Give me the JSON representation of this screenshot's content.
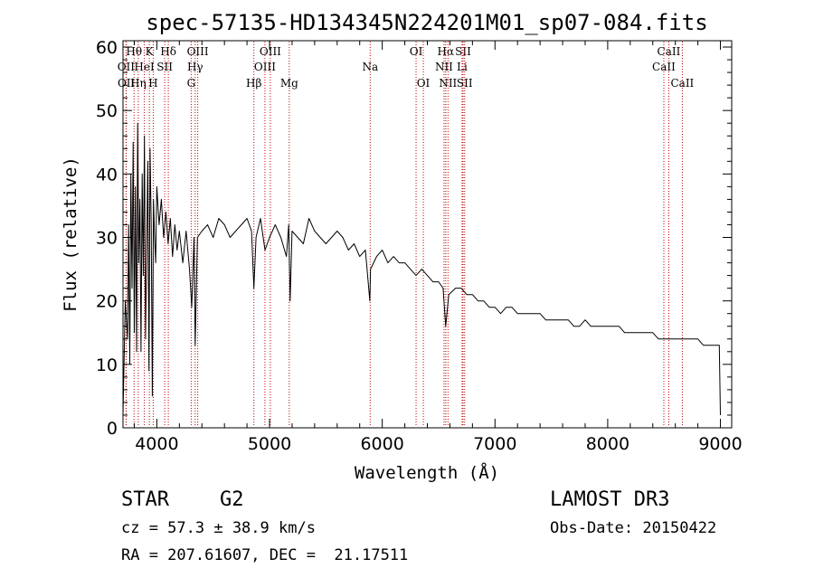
{
  "chart_data": {
    "type": "line",
    "title": "spec-57135-HD134345N224201M01_sp07-084.fits",
    "xlabel": "Wavelength (Å)",
    "ylabel": "Flux (relative)",
    "xlim": [
      3700,
      9100
    ],
    "ylim": [
      0,
      61
    ],
    "xticks": [
      4000,
      5000,
      6000,
      7000,
      8000,
      9000
    ],
    "yticks": [
      0,
      10,
      20,
      30,
      40,
      50,
      60
    ],
    "series": [
      {
        "name": "flux",
        "x": [
          3700,
          3720,
          3740,
          3750,
          3760,
          3770,
          3780,
          3790,
          3800,
          3810,
          3820,
          3830,
          3840,
          3850,
          3860,
          3870,
          3880,
          3890,
          3900,
          3910,
          3920,
          3930,
          3940,
          3950,
          3960,
          3970,
          3980,
          3990,
          4000,
          4020,
          4040,
          4060,
          4080,
          4100,
          4120,
          4140,
          4160,
          4180,
          4200,
          4230,
          4260,
          4290,
          4310,
          4330,
          4340,
          4360,
          4400,
          4450,
          4500,
          4550,
          4600,
          4650,
          4700,
          4750,
          4800,
          4840,
          4861,
          4880,
          4920,
          4960,
          5000,
          5050,
          5100,
          5150,
          5170,
          5183,
          5200,
          5250,
          5300,
          5350,
          5400,
          5450,
          5500,
          5550,
          5600,
          5650,
          5700,
          5750,
          5800,
          5850,
          5890,
          5896,
          5950,
          6000,
          6050,
          6100,
          6150,
          6200,
          6250,
          6300,
          6350,
          6400,
          6450,
          6500,
          6540,
          6563,
          6590,
          6650,
          6700,
          6750,
          6800,
          6850,
          6900,
          6950,
          7000,
          7050,
          7100,
          7150,
          7200,
          7250,
          7300,
          7350,
          7400,
          7450,
          7500,
          7550,
          7600,
          7650,
          7700,
          7750,
          7800,
          7850,
          7900,
          7950,
          8000,
          8050,
          8100,
          8150,
          8200,
          8250,
          8300,
          8350,
          8400,
          8450,
          8500,
          8550,
          8600,
          8650,
          8700,
          8750,
          8800,
          8850,
          8900,
          8950,
          8990,
          9000
        ],
        "y": [
          2,
          20,
          14,
          32,
          10,
          40,
          22,
          45,
          15,
          38,
          12,
          48,
          26,
          36,
          12,
          40,
          24,
          46,
          14,
          28,
          42,
          9,
          44,
          32,
          5,
          36,
          30,
          26,
          38,
          32,
          36,
          30,
          34,
          29,
          33,
          27,
          32,
          28,
          31,
          26,
          31,
          25,
          19,
          30,
          13,
          30,
          31,
          32,
          30,
          33,
          32,
          30,
          31,
          32,
          33,
          31,
          22,
          30,
          33,
          28,
          30,
          32,
          30,
          27,
          32,
          20,
          31,
          30,
          29,
          33,
          31,
          30,
          29,
          30,
          31,
          30,
          28,
          29,
          27,
          28,
          20,
          25,
          27,
          28,
          26,
          27,
          26,
          26,
          25,
          24,
          25,
          24,
          23,
          23,
          22,
          16,
          21,
          22,
          22,
          21,
          21,
          20,
          20,
          19,
          19,
          18,
          19,
          19,
          18,
          18,
          18,
          18,
          18,
          17,
          17,
          17,
          17,
          17,
          16,
          16,
          17,
          16,
          16,
          16,
          16,
          16,
          16,
          15,
          15,
          15,
          15,
          15,
          15,
          14,
          14,
          14,
          14,
          14,
          14,
          14,
          14,
          13,
          13,
          13,
          13,
          2
        ]
      }
    ],
    "spectral_lines": [
      {
        "label": "Hθ",
        "wavelength": 3798,
        "row": 1
      },
      {
        "label": "K",
        "wavelength": 3934,
        "row": 1
      },
      {
        "label": "Hδ",
        "wavelength": 4102,
        "row": 1
      },
      {
        "label": "OIII",
        "wavelength": 4363,
        "row": 1
      },
      {
        "label": "OIII",
        "wavelength": 5007,
        "row": 1
      },
      {
        "label": "OI",
        "wavelength": 6300,
        "row": 1
      },
      {
        "label": "Hα",
        "wavelength": 6563,
        "row": 1
      },
      {
        "label": "SII",
        "wavelength": 6717,
        "row": 1
      },
      {
        "label": "CaII",
        "wavelength": 8542,
        "row": 1
      },
      {
        "label": "OII",
        "wavelength": 3727,
        "row": 2
      },
      {
        "label": "HeI",
        "wavelength": 3889,
        "row": 2
      },
      {
        "label": "SII",
        "wavelength": 4070,
        "row": 2
      },
      {
        "label": "Hγ",
        "wavelength": 4340,
        "row": 2
      },
      {
        "label": "OIII",
        "wavelength": 4959,
        "row": 2
      },
      {
        "label": "Na",
        "wavelength": 5893,
        "row": 2
      },
      {
        "label": "NII",
        "wavelength": 6548,
        "row": 2
      },
      {
        "label": "Li",
        "wavelength": 6708,
        "row": 2
      },
      {
        "label": "CaII",
        "wavelength": 8498,
        "row": 2
      },
      {
        "label": "OII",
        "wavelength": 3729,
        "row": 3
      },
      {
        "label": "Hη",
        "wavelength": 3835,
        "row": 3
      },
      {
        "label": "H",
        "wavelength": 3968,
        "row": 3
      },
      {
        "label": "G",
        "wavelength": 4305,
        "row": 3
      },
      {
        "label": "Hβ",
        "wavelength": 4861,
        "row": 3
      },
      {
        "label": "Mg",
        "wavelength": 5175,
        "row": 3
      },
      {
        "label": "OI",
        "wavelength": 6364,
        "row": 3
      },
      {
        "label": "NII",
        "wavelength": 6583,
        "row": 3
      },
      {
        "label": "SII",
        "wavelength": 6731,
        "row": 3
      },
      {
        "label": "CaII",
        "wavelength": 8662,
        "row": 3
      }
    ]
  },
  "info": {
    "object_class": "STAR",
    "subclass": "G2",
    "cz": "cz = 57.3 ± 38.9 km/s",
    "coords": "RA = 207.61607, DEC =  21.17511",
    "survey": "LAMOST DR3",
    "obs_date": "Obs-Date: 20150422"
  }
}
